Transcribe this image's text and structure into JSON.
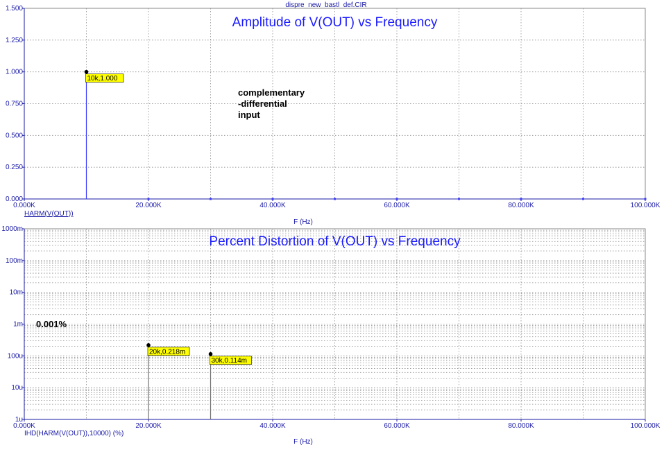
{
  "header": {
    "filename": "dispre_new_bastl_def.CIR"
  },
  "colors": {
    "axis": "#1a1aa6",
    "grid": "#8a8a8a",
    "title": "#1a1aff",
    "series_top": "#3b3bff",
    "series_bottom": "#707070",
    "marker_bg": "#ffff00",
    "background": "#ffffff"
  },
  "chart_data": [
    {
      "type": "bar",
      "title": "Amplitude of V(OUT) vs Frequency",
      "xlabel": "F (Hz)",
      "trace_label": "HARM(V(OUT))",
      "x_scale": "linear",
      "y_scale": "linear",
      "xlim": [
        0,
        100000
      ],
      "ylim": [
        0,
        1.5
      ],
      "x_ticks": [
        0,
        20000,
        40000,
        60000,
        80000,
        100000
      ],
      "x_tick_labels": [
        "0.000K",
        "20.000K",
        "40.000K",
        "60.000K",
        "80.000K",
        "100.000K"
      ],
      "y_ticks": [
        0,
        0.25,
        0.5,
        0.75,
        1.0,
        1.25,
        1.5
      ],
      "y_tick_labels": [
        "0.000",
        "0.250",
        "0.500",
        "0.750",
        "1.000",
        "1.250",
        "1.500"
      ],
      "grid": true,
      "x": [
        10000,
        20000,
        30000,
        40000,
        50000,
        60000,
        70000,
        80000,
        90000,
        100000
      ],
      "values": [
        1.0,
        2.18e-06,
        1.14e-06,
        0,
        0,
        0,
        0,
        0,
        0,
        0
      ],
      "markers": [
        {
          "x": 10000,
          "y": 1.0,
          "label": "10k,1.000"
        }
      ],
      "annotations": [
        {
          "lines": [
            "complementary",
            "-differential",
            "input"
          ]
        }
      ]
    },
    {
      "type": "bar",
      "title": "Percent Distortion of V(OUT) vs Frequency",
      "xlabel": "F (Hz)",
      "trace_label": "IHD(HARM(V(OUT)),10000) (%)",
      "x_scale": "linear",
      "y_scale": "log",
      "xlim": [
        0,
        100000
      ],
      "ylim": [
        1e-06,
        1
      ],
      "x_ticks": [
        0,
        20000,
        40000,
        60000,
        80000,
        100000
      ],
      "x_tick_labels": [
        "0.000K",
        "20.000K",
        "40.000K",
        "60.000K",
        "80.000K",
        "100.000K"
      ],
      "y_ticks": [
        1e-06,
        1e-05,
        0.0001,
        0.001,
        0.01,
        0.1,
        1
      ],
      "y_tick_labels": [
        "1u",
        "10u",
        "100u",
        "1m",
        "10m",
        "100m",
        "1000m"
      ],
      "grid": true,
      "x": [
        20000,
        30000
      ],
      "values": [
        0.000218,
        0.000114
      ],
      "markers": [
        {
          "x": 20000,
          "y": 0.000218,
          "label": "20k,0.218m"
        },
        {
          "x": 30000,
          "y": 0.000114,
          "label": "30k,0.114m"
        }
      ],
      "annotations": [
        {
          "lines": [
            "0.001%"
          ]
        }
      ]
    }
  ]
}
